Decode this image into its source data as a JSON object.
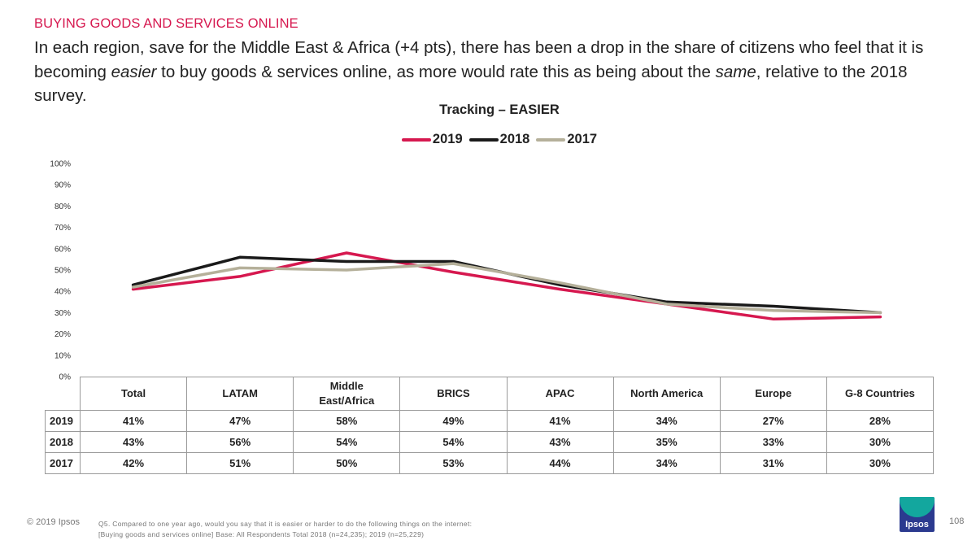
{
  "header": {
    "section_title": "BUYING GOODS AND SERVICES ONLINE",
    "headline_part1": "In each region, save for the Middle East & Africa (+4 pts), there has been a drop in the share of citizens who feel that it is becoming ",
    "headline_em1": "easier",
    "headline_part2": " to buy goods & services online, as more would rate this as being about the ",
    "headline_em2": "same",
    "headline_part3": ", relative to the 2018 survey."
  },
  "chart_data": {
    "type": "line",
    "title": "Tracking – EASIER",
    "categories": [
      "Total",
      "LATAM",
      "Middle East/Africa",
      "BRICS",
      "APAC",
      "North America",
      "Europe",
      "G-8 Countries"
    ],
    "series": [
      {
        "name": "2019",
        "color": "#d6184f",
        "values": [
          41,
          47,
          58,
          49,
          41,
          34,
          27,
          28
        ],
        "labels": [
          "41%",
          "47%",
          "58%",
          "49%",
          "41%",
          "34%",
          "27%",
          "28%"
        ]
      },
      {
        "name": "2018",
        "color": "#1a1a1a",
        "values": [
          43,
          56,
          54,
          54,
          43,
          35,
          33,
          30
        ],
        "labels": [
          "43%",
          "56%",
          "54%",
          "54%",
          "43%",
          "35%",
          "33%",
          "30%"
        ]
      },
      {
        "name": "2017",
        "color": "#b5b09a",
        "values": [
          42,
          51,
          50,
          53,
          44,
          34,
          31,
          30
        ],
        "labels": [
          "42%",
          "51%",
          "50%",
          "53%",
          "44%",
          "34%",
          "31%",
          "30%"
        ]
      }
    ],
    "ylim": [
      0,
      100
    ],
    "yticks": [
      "0%",
      "10%",
      "20%",
      "30%",
      "40%",
      "50%",
      "60%",
      "70%",
      "80%",
      "90%",
      "100%"
    ],
    "legend_position": "top-center",
    "grid": false
  },
  "table": {
    "header_line2_middle_east": "East/Africa",
    "header_line1_middle_east": "Middle"
  },
  "footer": {
    "copyright": "© 2019 Ipsos",
    "note_line1": "Q5. Compared to one year ago, would you say that it is easier or harder to do the following things on the internet:",
    "note_line2": "[Buying goods and services online] Base: All Respondents Total 2018 (n=24,235); 2019 (n=25,229)",
    "logo_text": "Ipsos",
    "page_number": "108"
  }
}
